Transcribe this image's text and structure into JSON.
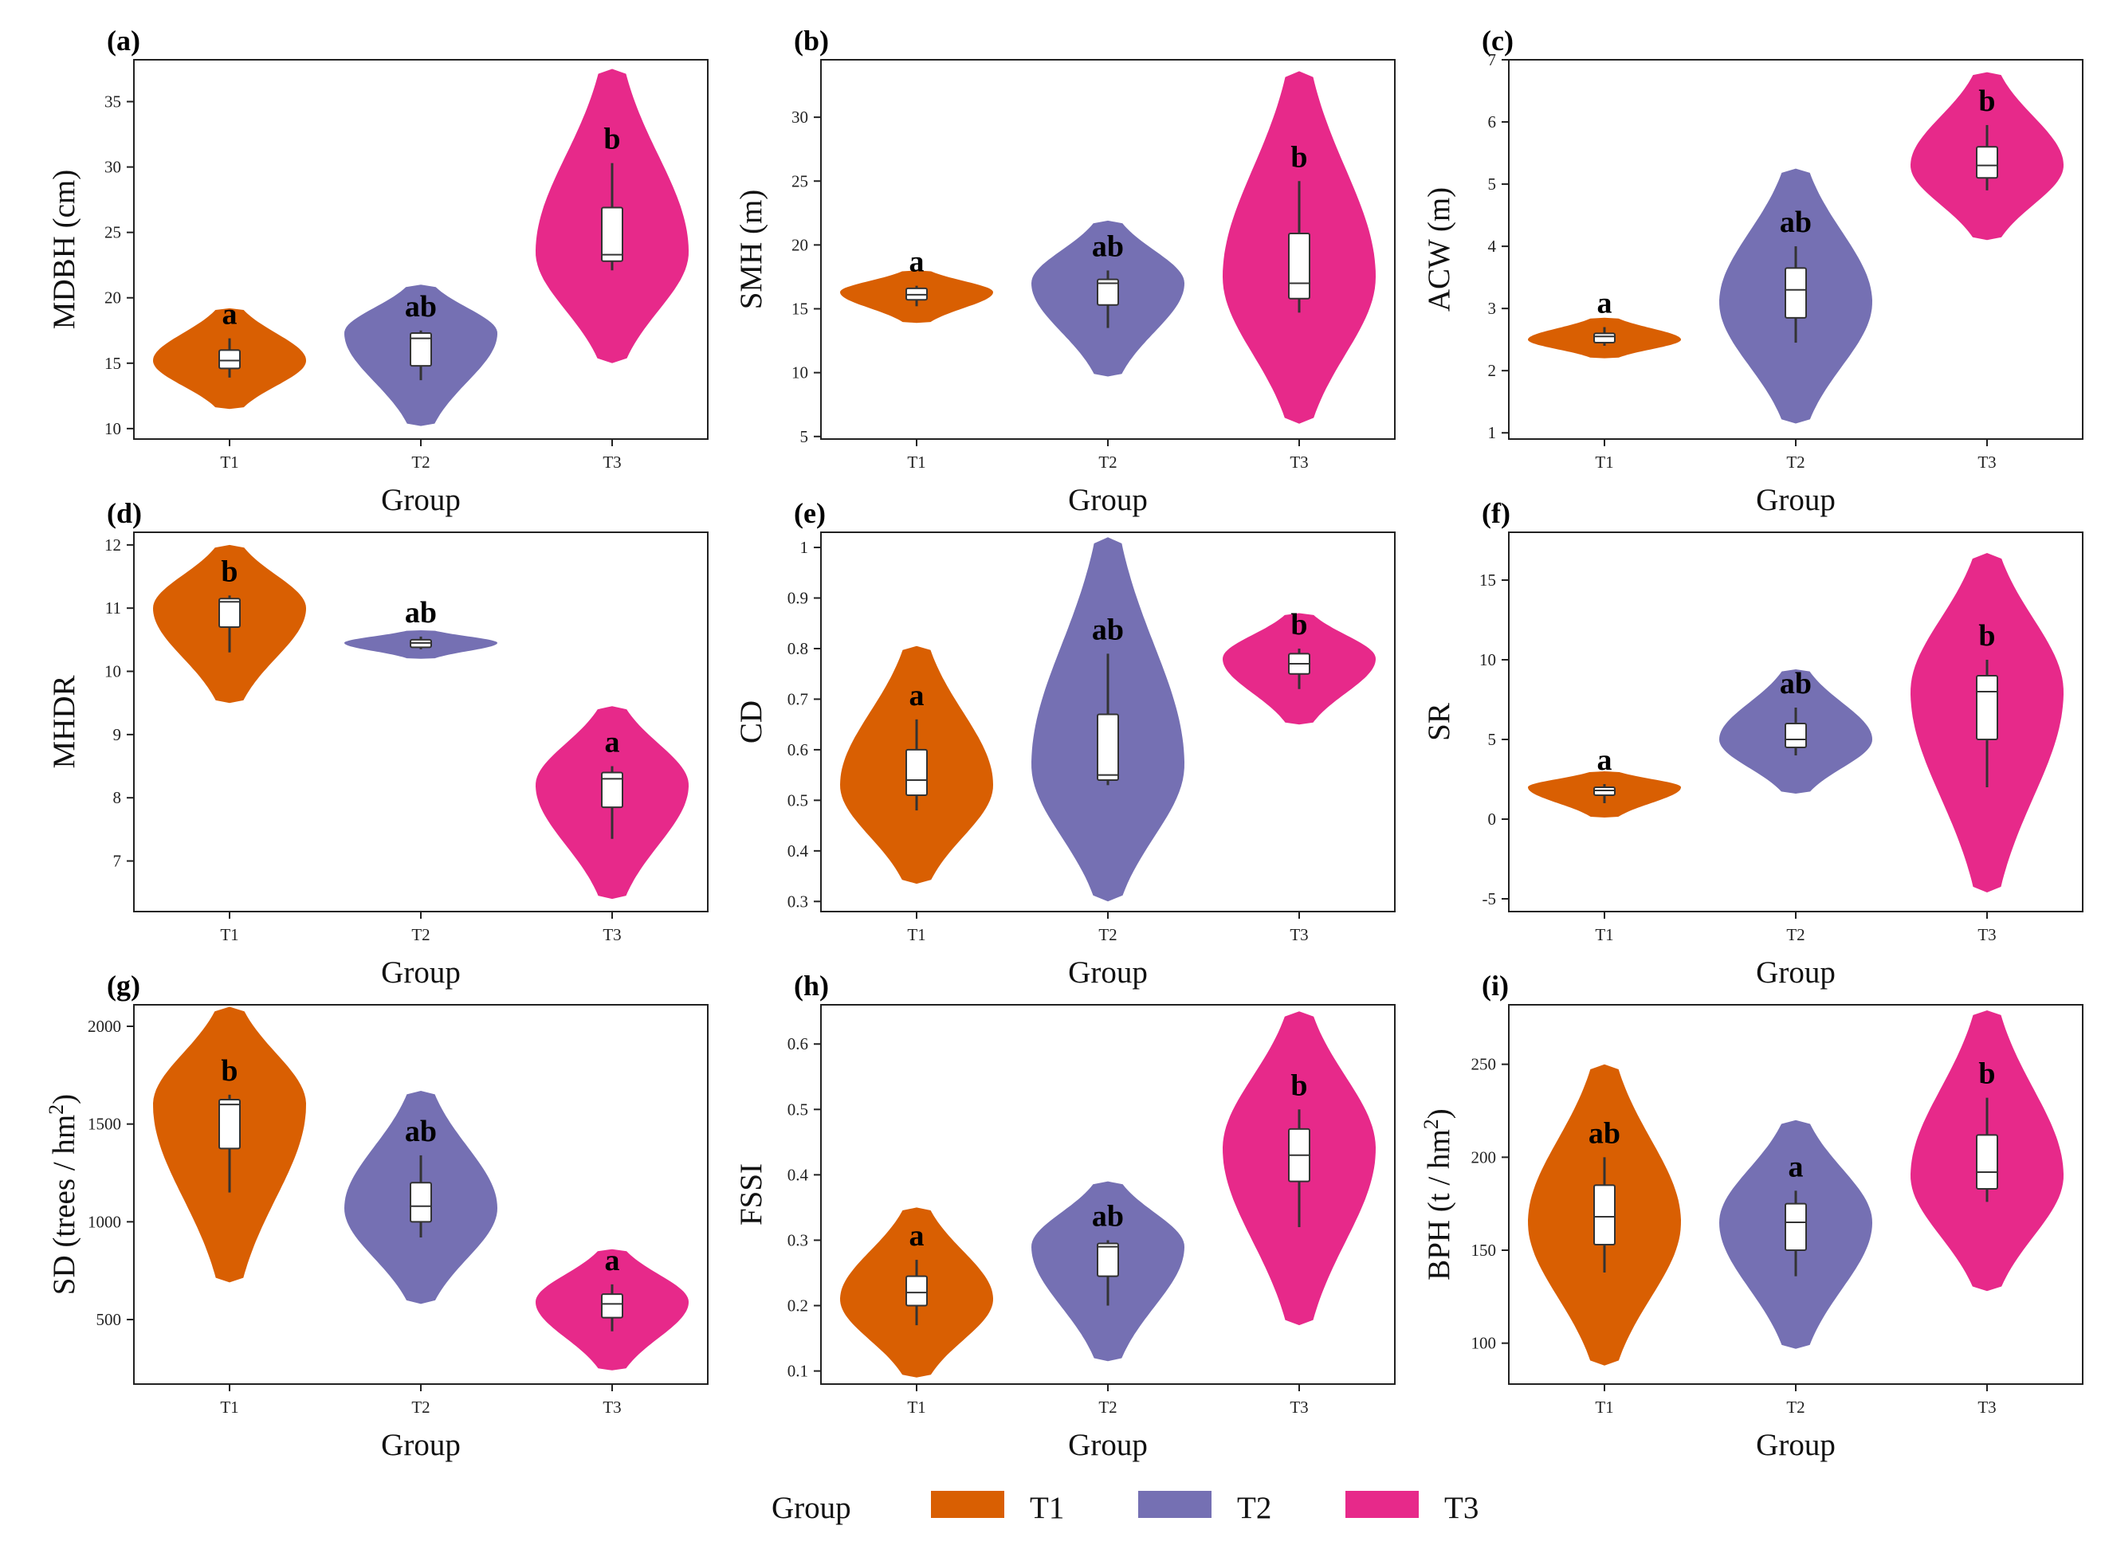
{
  "legend": {
    "title": "Group",
    "items": [
      {
        "label": "T1",
        "color": "#D95F02"
      },
      {
        "label": "T2",
        "color": "#7570B3"
      },
      {
        "label": "T3",
        "color": "#E7298A"
      }
    ]
  },
  "chart_data": [
    {
      "type": "violin",
      "panel": "(a)",
      "title": "",
      "xlabel": "Group",
      "ylabel": "MDBH (cm)",
      "categories": [
        "T1",
        "T2",
        "T3"
      ],
      "ylim": [
        9.2,
        38.2
      ],
      "yticks": [
        10,
        15,
        20,
        25,
        30,
        35
      ],
      "groups": [
        {
          "label": "T1",
          "letter": "a",
          "range": [
            11.5,
            19.2
          ],
          "peak": 15.2,
          "box": {
            "min": 13.9,
            "q1": 14.6,
            "median": 15.2,
            "q3": 16.0,
            "max": 16.9
          }
        },
        {
          "label": "T2",
          "letter": "ab",
          "range": [
            10.2,
            21.0
          ],
          "peak": 17.3,
          "box": {
            "min": 13.7,
            "q1": 14.8,
            "median": 16.9,
            "q3": 17.3,
            "max": 17.5
          }
        },
        {
          "label": "T3",
          "letter": "b",
          "range": [
            15.0,
            37.5
          ],
          "peak": 23.5,
          "box": {
            "min": 22.1,
            "q1": 22.8,
            "median": 23.3,
            "q3": 26.9,
            "max": 30.3
          }
        }
      ]
    },
    {
      "type": "violin",
      "panel": "(b)",
      "title": "",
      "xlabel": "Group",
      "ylabel": "SMH (m)",
      "categories": [
        "T1",
        "T2",
        "T3"
      ],
      "ylim": [
        4.8,
        34.5
      ],
      "yticks": [
        5,
        10,
        15,
        20,
        25,
        30
      ],
      "groups": [
        {
          "label": "T1",
          "letter": "a",
          "range": [
            13.9,
            18.0
          ],
          "peak": 16.3,
          "box": {
            "min": 15.2,
            "q1": 15.7,
            "median": 16.1,
            "q3": 16.6,
            "max": 16.8
          }
        },
        {
          "label": "T2",
          "letter": "ab",
          "range": [
            9.7,
            21.9
          ],
          "peak": 17.0,
          "box": {
            "min": 13.5,
            "q1": 15.3,
            "median": 17.0,
            "q3": 17.3,
            "max": 18.0
          }
        },
        {
          "label": "T3",
          "letter": "b",
          "range": [
            6.0,
            33.6
          ],
          "peak": 17.5,
          "box": {
            "min": 14.7,
            "q1": 15.8,
            "median": 17.0,
            "q3": 20.9,
            "max": 25.0
          }
        }
      ]
    },
    {
      "type": "violin",
      "panel": "(c)",
      "title": "",
      "xlabel": "Group",
      "ylabel": "ACW (m)",
      "categories": [
        "T1",
        "T2",
        "T3"
      ],
      "ylim": [
        0.9,
        7.0
      ],
      "yticks": [
        1,
        2,
        3,
        4,
        5,
        6,
        7
      ],
      "groups": [
        {
          "label": "T1",
          "letter": "a",
          "range": [
            2.2,
            2.85
          ],
          "peak": 2.5,
          "box": {
            "min": 2.4,
            "q1": 2.45,
            "median": 2.55,
            "q3": 2.6,
            "max": 2.7
          }
        },
        {
          "label": "T2",
          "letter": "ab",
          "range": [
            1.15,
            5.25
          ],
          "peak": 3.1,
          "box": {
            "min": 2.45,
            "q1": 2.85,
            "median": 3.3,
            "q3": 3.65,
            "max": 4.0
          }
        },
        {
          "label": "T3",
          "letter": "b",
          "range": [
            4.1,
            6.8
          ],
          "peak": 5.3,
          "box": {
            "min": 4.9,
            "q1": 5.1,
            "median": 5.3,
            "q3": 5.6,
            "max": 5.95
          }
        }
      ]
    },
    {
      "type": "violin",
      "panel": "(d)",
      "title": "",
      "xlabel": "Group",
      "ylabel": "MHDR",
      "categories": [
        "T1",
        "T2",
        "T3"
      ],
      "ylim": [
        6.2,
        12.2
      ],
      "yticks": [
        7,
        8,
        9,
        10,
        11,
        12
      ],
      "groups": [
        {
          "label": "T1",
          "letter": "b",
          "range": [
            9.5,
            12.0
          ],
          "peak": 11.0,
          "box": {
            "min": 10.3,
            "q1": 10.7,
            "median": 11.1,
            "q3": 11.15,
            "max": 11.2
          }
        },
        {
          "label": "T2",
          "letter": "ab",
          "range": [
            10.2,
            10.65
          ],
          "peak": 10.45,
          "box": {
            "min": 10.35,
            "q1": 10.38,
            "median": 10.45,
            "q3": 10.5,
            "max": 10.55
          }
        },
        {
          "label": "T3",
          "letter": "a",
          "range": [
            6.4,
            9.45
          ],
          "peak": 8.2,
          "box": {
            "min": 7.35,
            "q1": 7.85,
            "median": 8.3,
            "q3": 8.4,
            "max": 8.5
          }
        }
      ]
    },
    {
      "type": "violin",
      "panel": "(e)",
      "title": "",
      "xlabel": "Group",
      "ylabel": "CD",
      "categories": [
        "T1",
        "T2",
        "T3"
      ],
      "ylim": [
        0.28,
        1.03
      ],
      "yticks": [
        0.3,
        0.4,
        0.5,
        0.6,
        0.7,
        0.8,
        0.9,
        1.0
      ],
      "groups": [
        {
          "label": "T1",
          "letter": "a",
          "range": [
            0.335,
            0.805
          ],
          "peak": 0.53,
          "box": {
            "min": 0.48,
            "q1": 0.51,
            "median": 0.54,
            "q3": 0.6,
            "max": 0.66
          }
        },
        {
          "label": "T2",
          "letter": "ab",
          "range": [
            0.3,
            1.02
          ],
          "peak": 0.57,
          "box": {
            "min": 0.53,
            "q1": 0.54,
            "median": 0.55,
            "q3": 0.67,
            "max": 0.79
          }
        },
        {
          "label": "T3",
          "letter": "b",
          "range": [
            0.65,
            0.87
          ],
          "peak": 0.78,
          "box": {
            "min": 0.72,
            "q1": 0.75,
            "median": 0.77,
            "q3": 0.79,
            "max": 0.8
          }
        }
      ]
    },
    {
      "type": "violin",
      "panel": "(f)",
      "title": "",
      "xlabel": "Group",
      "ylabel": "SR",
      "categories": [
        "T1",
        "T2",
        "T3"
      ],
      "ylim": [
        -5.8,
        18.0
      ],
      "yticks": [
        -5,
        0,
        5,
        10,
        15
      ],
      "groups": [
        {
          "label": "T1",
          "letter": "a",
          "range": [
            0.1,
            3.0
          ],
          "peak": 2.0,
          "box": {
            "min": 1.0,
            "q1": 1.5,
            "median": 1.8,
            "q3": 2.0,
            "max": 2.2
          }
        },
        {
          "label": "T2",
          "letter": "ab",
          "range": [
            1.6,
            9.4
          ],
          "peak": 5.0,
          "box": {
            "min": 4.0,
            "q1": 4.5,
            "median": 5.0,
            "q3": 6.0,
            "max": 7.0
          }
        },
        {
          "label": "T3",
          "letter": "b",
          "range": [
            -4.6,
            16.7
          ],
          "peak": 8.0,
          "box": {
            "min": 2.0,
            "q1": 5.0,
            "median": 8.0,
            "q3": 9.0,
            "max": 10.0
          }
        }
      ]
    },
    {
      "type": "violin",
      "panel": "(g)",
      "title": "",
      "xlabel": "Group",
      "ylabel": "SD (trees / hm²)",
      "categories": [
        "T1",
        "T2",
        "T3"
      ],
      "ylim": [
        170,
        2110
      ],
      "yticks": [
        500,
        1000,
        1500,
        2000
      ],
      "groups": [
        {
          "label": "T1",
          "letter": "b",
          "range": [
            690,
            2100
          ],
          "peak": 1600,
          "box": {
            "min": 1150,
            "q1": 1375,
            "median": 1600,
            "q3": 1625,
            "max": 1650
          }
        },
        {
          "label": "T2",
          "letter": "ab",
          "range": [
            580,
            1670
          ],
          "peak": 1070,
          "box": {
            "min": 920,
            "q1": 1000,
            "median": 1080,
            "q3": 1200,
            "max": 1340
          }
        },
        {
          "label": "T3",
          "letter": "a",
          "range": [
            240,
            860
          ],
          "peak": 590,
          "box": {
            "min": 440,
            "q1": 510,
            "median": 580,
            "q3": 630,
            "max": 680
          }
        }
      ]
    },
    {
      "type": "violin",
      "panel": "(h)",
      "title": "",
      "xlabel": "Group",
      "ylabel": "FSSI",
      "categories": [
        "T1",
        "T2",
        "T3"
      ],
      "ylim": [
        0.08,
        0.66
      ],
      "yticks": [
        0.1,
        0.2,
        0.3,
        0.4,
        0.5,
        0.6
      ],
      "groups": [
        {
          "label": "T1",
          "letter": "a",
          "range": [
            0.09,
            0.35
          ],
          "peak": 0.21,
          "box": {
            "min": 0.17,
            "q1": 0.2,
            "median": 0.22,
            "q3": 0.245,
            "max": 0.27
          }
        },
        {
          "label": "T2",
          "letter": "ab",
          "range": [
            0.115,
            0.39
          ],
          "peak": 0.29,
          "box": {
            "min": 0.2,
            "q1": 0.245,
            "median": 0.29,
            "q3": 0.295,
            "max": 0.3
          }
        },
        {
          "label": "T3",
          "letter": "b",
          "range": [
            0.17,
            0.65
          ],
          "peak": 0.44,
          "box": {
            "min": 0.32,
            "q1": 0.39,
            "median": 0.43,
            "q3": 0.47,
            "max": 0.5
          }
        }
      ]
    },
    {
      "type": "violin",
      "panel": "(i)",
      "title": "",
      "xlabel": "Group",
      "ylabel": "BPH (t / hm²)",
      "categories": [
        "T1",
        "T2",
        "T3"
      ],
      "ylim": [
        78,
        282
      ],
      "yticks": [
        100,
        150,
        200,
        250
      ],
      "groups": [
        {
          "label": "T1",
          "letter": "ab",
          "range": [
            88,
            250
          ],
          "peak": 165,
          "box": {
            "min": 138,
            "q1": 153,
            "median": 168,
            "q3": 185,
            "max": 200
          }
        },
        {
          "label": "T2",
          "letter": "a",
          "range": [
            97,
            220
          ],
          "peak": 165,
          "box": {
            "min": 136,
            "q1": 150,
            "median": 165,
            "q3": 175,
            "max": 182
          }
        },
        {
          "label": "T3",
          "letter": "b",
          "range": [
            128,
            279
          ],
          "peak": 190,
          "box": {
            "min": 176,
            "q1": 183,
            "median": 192,
            "q3": 212,
            "max": 232
          }
        }
      ]
    }
  ]
}
